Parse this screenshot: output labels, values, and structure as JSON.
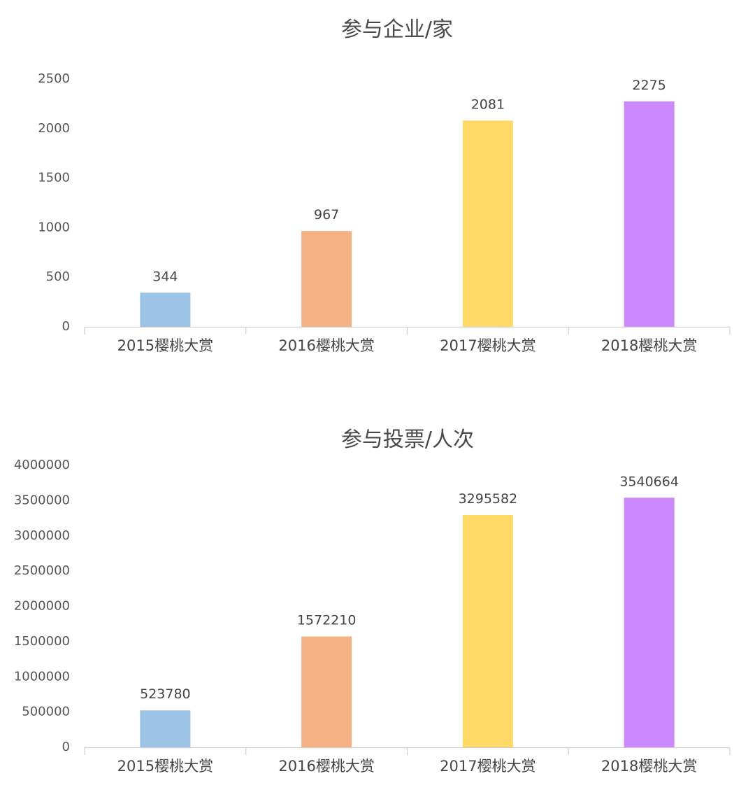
{
  "chart_data": [
    {
      "type": "bar",
      "title": "参与企业/家",
      "categories": [
        "2015樱桃大赏",
        "2016樱桃大赏",
        "2017樱桃大赏",
        "2018樱桃大赏"
      ],
      "values": [
        344,
        967,
        2081,
        2275
      ],
      "value_labels": [
        "344",
        "967",
        "2081",
        "2275"
      ],
      "ylim": [
        0,
        2500
      ],
      "yticks": [
        0,
        500,
        1000,
        1500,
        2000,
        2500
      ],
      "ytick_labels": [
        "0",
        "500",
        "1000",
        "1500",
        "2000",
        "2500"
      ],
      "xlabel": "",
      "ylabel": "",
      "grid": false,
      "colors": [
        "#9dc3e6",
        "#f4b183",
        "#ffd966",
        "#cc88ff"
      ]
    },
    {
      "type": "bar",
      "title": "参与投票/人次",
      "categories": [
        "2015樱桃大赏",
        "2016樱桃大赏",
        "2017樱桃大赏",
        "2018樱桃大赏"
      ],
      "values": [
        523780,
        1572210,
        3295582,
        3540664
      ],
      "value_labels": [
        "523780",
        "1572210",
        "3295582",
        "3540664"
      ],
      "ylim": [
        0,
        4000000
      ],
      "yticks": [
        0,
        500000,
        1000000,
        1500000,
        2000000,
        2500000,
        3000000,
        3500000,
        4000000
      ],
      "ytick_labels": [
        "0",
        "500000",
        "1000000",
        "1500000",
        "2000000",
        "2500000",
        "3000000",
        "3500000",
        "4000000"
      ],
      "xlabel": "",
      "ylabel": "",
      "grid": false,
      "colors": [
        "#9dc3e6",
        "#f4b183",
        "#ffd966",
        "#cc88ff"
      ]
    }
  ]
}
